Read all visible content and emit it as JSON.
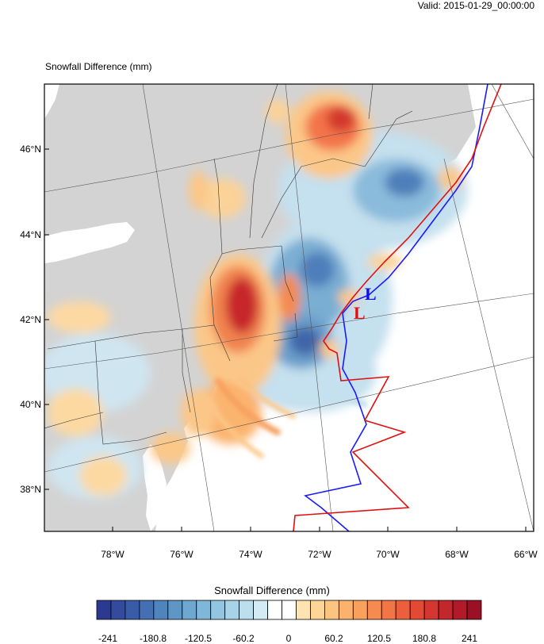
{
  "valid_time": "Valid: 2015-01-29_00:00:00",
  "map_title": "Snowfall Difference   (mm)",
  "lat_labels": [
    "46°N",
    "44°N",
    "42°N",
    "40°N",
    "38°N"
  ],
  "lon_labels": [
    "78°W",
    "76°W",
    "74°W",
    "72°W",
    "70°W",
    "68°W",
    "66°W"
  ],
  "low_markers": [
    {
      "symbol": "L",
      "color": "#1010e0"
    },
    {
      "symbol": "L",
      "color": "#e01010"
    }
  ],
  "colorbar": {
    "title": "Snowfall Difference  (mm)",
    "tick_labels": [
      "-241",
      "-180.8",
      "-120.5",
      "-60.2",
      "0",
      "60.2",
      "120.5",
      "180.8",
      "241"
    ],
    "colors": [
      "#2b3a8f",
      "#324b9c",
      "#3a5ca8",
      "#4470b3",
      "#5084bd",
      "#5e96c6",
      "#6ea7cf",
      "#80b6d8",
      "#93c5e0",
      "#a7d2e7",
      "#bcdfee",
      "#d3ebf4",
      "#ffffff",
      "#ffffff",
      "#fde4b0",
      "#fdd596",
      "#fcc47f",
      "#fbb26c",
      "#f9a05c",
      "#f68b4f",
      "#f27545",
      "#ec5f3c",
      "#e24a35",
      "#d4372f",
      "#c4272b",
      "#b11a28",
      "#9c1026"
    ]
  }
}
